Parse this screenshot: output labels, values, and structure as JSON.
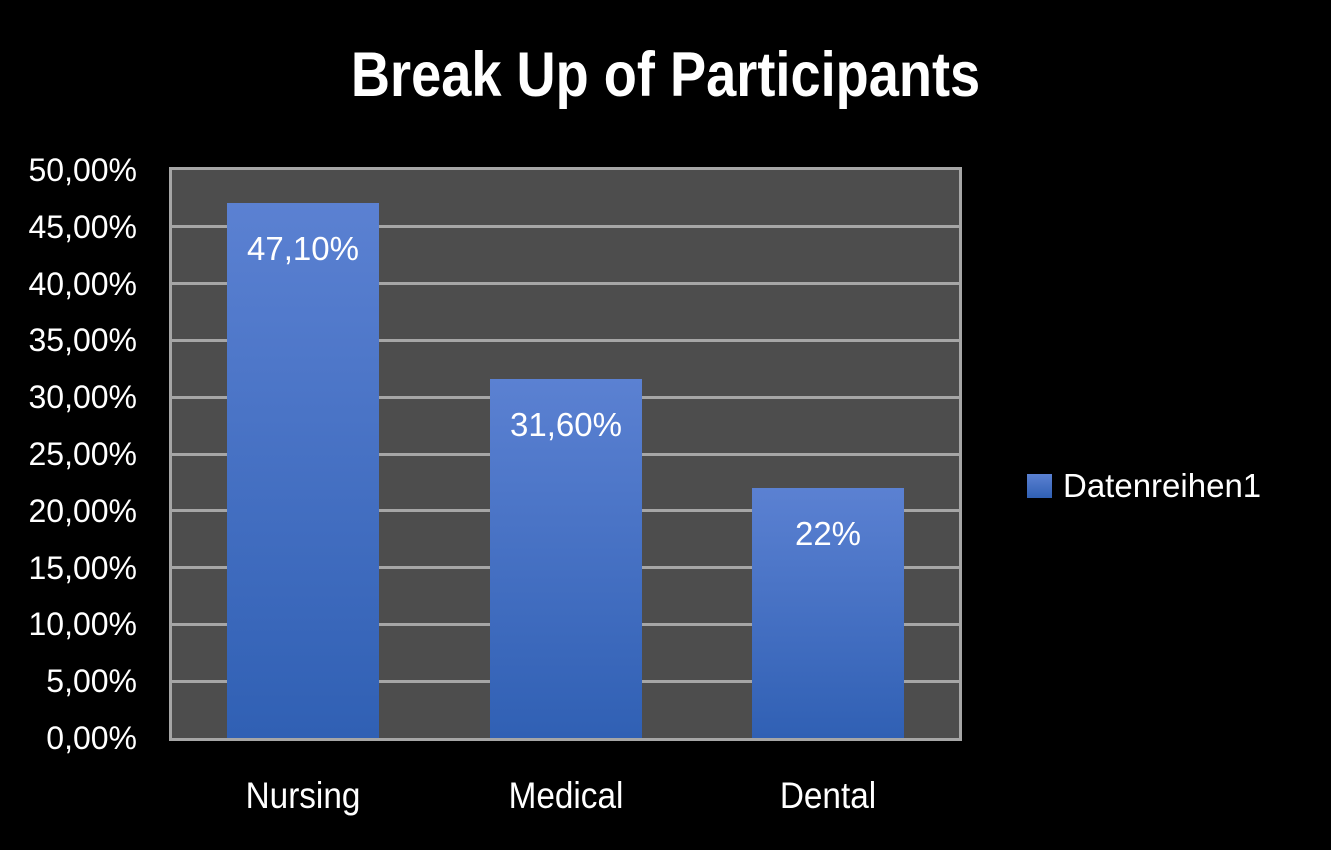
{
  "chart_data": {
    "type": "bar",
    "title": "Break Up of Participants",
    "categories": [
      "Nursing",
      "Medical",
      "Dental"
    ],
    "series": [
      {
        "name": "Datenreihen1",
        "values": [
          47.1,
          31.6,
          22
        ]
      }
    ],
    "data_labels": [
      "47,10%",
      "31,60%",
      "22%"
    ],
    "y_tick_labels": [
      "0,00%",
      "5,00%",
      "10,00%",
      "15,00%",
      "20,00%",
      "25,00%",
      "30,00%",
      "35,00%",
      "40,00%",
      "45,00%",
      "50,00%"
    ],
    "ylim": [
      0,
      50
    ],
    "y_tick_step": 5,
    "xlabel": "",
    "ylabel": "",
    "grid": true,
    "legend_position": "right"
  },
  "colors": {
    "background": "#000000",
    "plot_fill": "#4d4d4d",
    "gridline": "#a6a6a6",
    "bar_top": "#5b81d2",
    "bar_bottom": "#3060b4",
    "text": "#ffffff"
  }
}
